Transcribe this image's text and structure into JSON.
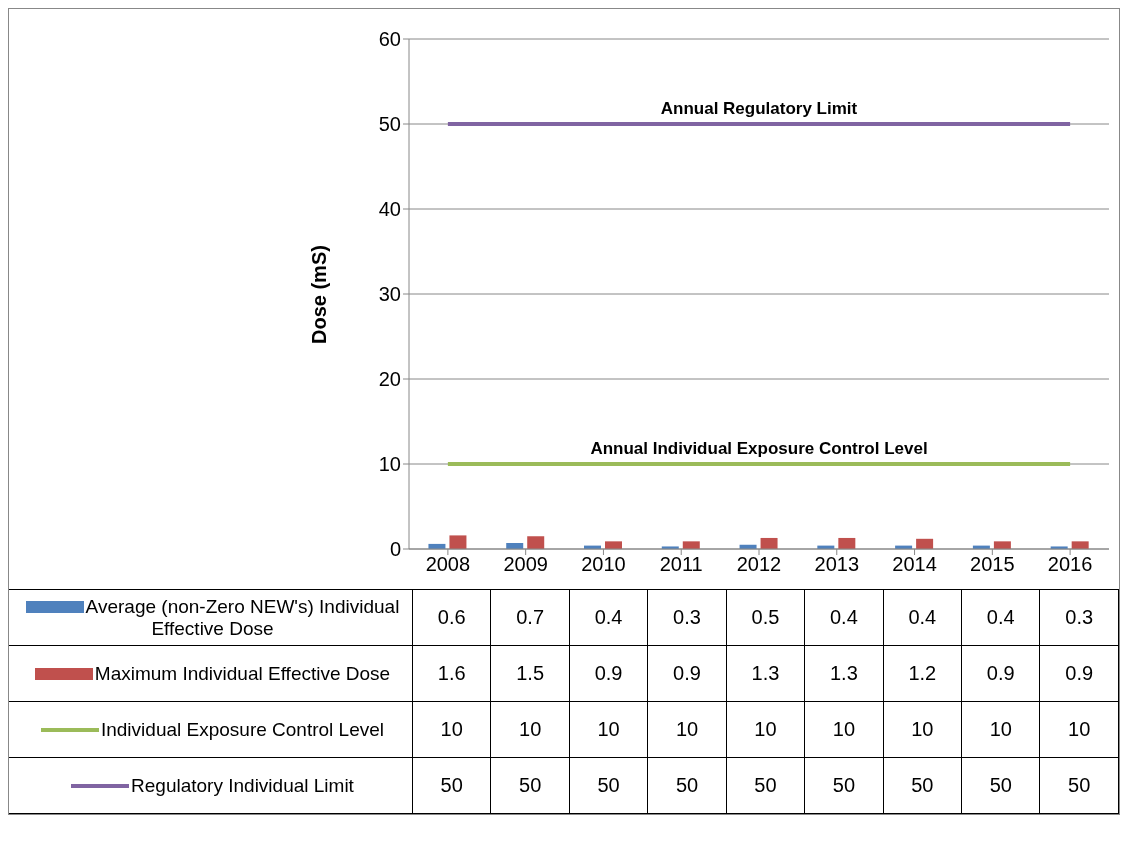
{
  "chart_data": {
    "type": "bar",
    "ylabel": "Dose (mS)",
    "categories": [
      "2008",
      "2009",
      "2010",
      "2011",
      "2012",
      "2013",
      "2014",
      "2015",
      "2016"
    ],
    "series": [
      {
        "name": "Average (non-Zero NEW's) Individual Effective Dose",
        "color": "#4f81bd",
        "values": [
          0.6,
          0.7,
          0.4,
          0.3,
          0.5,
          0.4,
          0.4,
          0.4,
          0.3
        ]
      },
      {
        "name": "Maximum Individual Effective Dose",
        "color": "#c0504d",
        "values": [
          1.6,
          1.5,
          0.9,
          0.9,
          1.3,
          1.3,
          1.2,
          0.9,
          0.9
        ]
      },
      {
        "name": "Individual Exposure Control Level",
        "type": "line",
        "color": "#9bbb59",
        "values": [
          10,
          10,
          10,
          10,
          10,
          10,
          10,
          10,
          10
        ]
      },
      {
        "name": "Regulatory Individual Limit",
        "type": "line",
        "color": "#8064a2",
        "values": [
          50,
          50,
          50,
          50,
          50,
          50,
          50,
          50,
          50
        ]
      }
    ],
    "annotations": [
      {
        "text": "Annual  Regulatory Limit",
        "x": "2012",
        "y": 50
      },
      {
        "text": "Annual Individual Exposure Control Level",
        "x": "2012",
        "y": 10
      }
    ],
    "ylim": [
      0,
      60
    ],
    "yticks": [
      0,
      10,
      20,
      30,
      40,
      50,
      60
    ],
    "grid": "y",
    "legend": "bottom",
    "data_labels": true
  }
}
